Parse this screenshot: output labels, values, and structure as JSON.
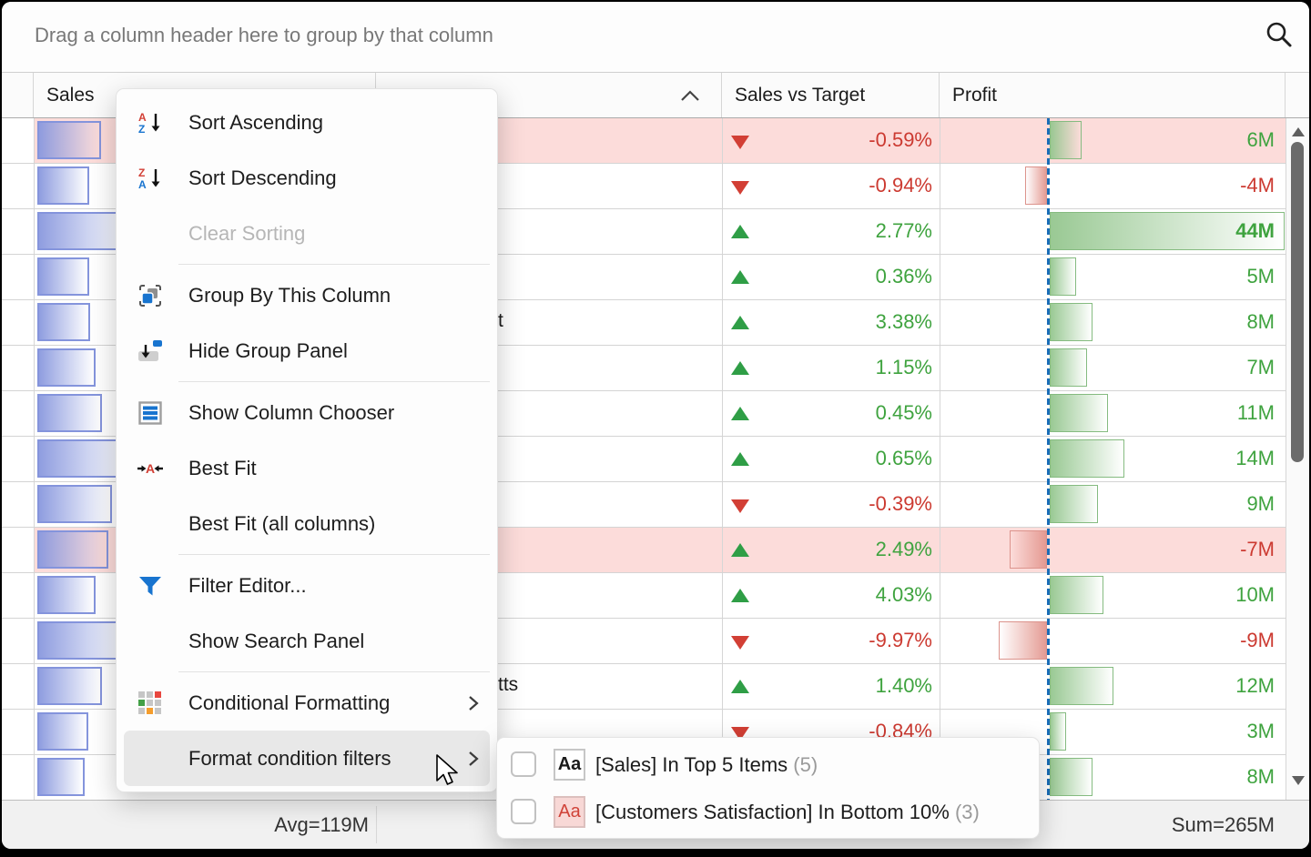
{
  "group_panel": {
    "hint": "Drag a column header here to group by that column",
    "search_icon": "search-icon"
  },
  "columns": [
    {
      "id": "row-indicator",
      "label": ""
    },
    {
      "id": "sales",
      "label": "Sales"
    },
    {
      "id": "hidden-column",
      "label": "",
      "sort": "ascending",
      "sort_icon": "chevron-up-icon"
    },
    {
      "id": "sales-vs-target",
      "label": "Sales vs Target"
    },
    {
      "id": "profit",
      "label": "Profit"
    }
  ],
  "rows": [
    {
      "highlight": true,
      "sales_bar": 70,
      "fragment": "",
      "trend": "down",
      "pct": "-0.59%",
      "pct_color": "red",
      "profit": "6M",
      "profit_color": "green",
      "profit_bar": 35,
      "bar_dir": "pos",
      "bold": false
    },
    {
      "highlight": false,
      "sales_bar": 57,
      "fragment": "",
      "trend": "down",
      "pct": "-0.94%",
      "pct_color": "red",
      "profit": "-4M",
      "profit_color": "red",
      "profit_bar": 24,
      "bar_dir": "neg",
      "bold": false
    },
    {
      "highlight": false,
      "sales_bar": 100,
      "fragment": "",
      "trend": "up",
      "pct": "2.77%",
      "pct_color": "green",
      "profit": "44M",
      "profit_color": "green",
      "profit_bar": 258,
      "bar_dir": "pos",
      "bold": true
    },
    {
      "highlight": false,
      "sales_bar": 57,
      "fragment": "",
      "trend": "up",
      "pct": "0.36%",
      "pct_color": "green",
      "profit": "5M",
      "profit_color": "green",
      "profit_bar": 29,
      "bar_dir": "pos",
      "bold": false
    },
    {
      "highlight": false,
      "sales_bar": 58,
      "fragment": "t",
      "trend": "up",
      "pct": "3.38%",
      "pct_color": "green",
      "profit": "8M",
      "profit_color": "green",
      "profit_bar": 47,
      "bar_dir": "pos",
      "bold": false
    },
    {
      "highlight": false,
      "sales_bar": 64,
      "fragment": "",
      "trend": "up",
      "pct": "1.15%",
      "pct_color": "green",
      "profit": "7M",
      "profit_color": "green",
      "profit_bar": 41,
      "bar_dir": "pos",
      "bold": false
    },
    {
      "highlight": false,
      "sales_bar": 71,
      "fragment": "",
      "trend": "up",
      "pct": "0.45%",
      "pct_color": "green",
      "profit": "11M",
      "profit_color": "green",
      "profit_bar": 64,
      "bar_dir": "pos",
      "bold": false
    },
    {
      "highlight": false,
      "sales_bar": 100,
      "fragment": "",
      "trend": "up",
      "pct": "0.65%",
      "pct_color": "green",
      "profit": "14M",
      "profit_color": "green",
      "profit_bar": 82,
      "bar_dir": "pos",
      "bold": false
    },
    {
      "highlight": false,
      "sales_bar": 82,
      "fragment": "",
      "trend": "down",
      "pct": "-0.39%",
      "pct_color": "red",
      "profit": "9M",
      "profit_color": "green",
      "profit_bar": 53,
      "bar_dir": "pos",
      "bold": false
    },
    {
      "highlight": true,
      "sales_bar": 78,
      "fragment": "",
      "trend": "up",
      "pct": "2.49%",
      "pct_color": "green",
      "profit": "-7M",
      "profit_color": "red",
      "profit_bar": 41,
      "bar_dir": "neg",
      "bold": false
    },
    {
      "highlight": false,
      "sales_bar": 64,
      "fragment": "",
      "trend": "up",
      "pct": "4.03%",
      "pct_color": "green",
      "profit": "10M",
      "profit_color": "green",
      "profit_bar": 59,
      "bar_dir": "pos",
      "bold": false
    },
    {
      "highlight": false,
      "sales_bar": 100,
      "fragment": "",
      "trend": "down",
      "pct": "-9.97%",
      "pct_color": "red",
      "profit": "-9M",
      "profit_color": "red",
      "profit_bar": 53,
      "bar_dir": "neg",
      "bold": false
    },
    {
      "highlight": false,
      "sales_bar": 71,
      "fragment": "tts",
      "trend": "up",
      "pct": "1.40%",
      "pct_color": "green",
      "profit": "12M",
      "profit_color": "green",
      "profit_bar": 70,
      "bar_dir": "pos",
      "bold": false
    },
    {
      "highlight": false,
      "sales_bar": 56,
      "fragment": "",
      "trend": "down",
      "pct": "-0.84%",
      "pct_color": "red",
      "profit": "3M",
      "profit_color": "green",
      "profit_bar": 18,
      "bar_dir": "pos",
      "bold": false
    },
    {
      "highlight": false,
      "sales_bar": 52,
      "fragment": "",
      "trend": null,
      "pct": "",
      "pct_color": "green",
      "profit": "8M",
      "profit_color": "green",
      "profit_bar": 47,
      "bar_dir": "pos",
      "bold": false
    }
  ],
  "footer": {
    "avg": "Avg=119M",
    "sum": "Sum=265M"
  },
  "context_menu": {
    "items": [
      {
        "type": "item",
        "icon": "sort-ascending-icon",
        "label": "Sort Ascending"
      },
      {
        "type": "item",
        "icon": "sort-descending-icon",
        "label": "Sort Descending"
      },
      {
        "type": "item",
        "icon": null,
        "label": "Clear Sorting",
        "disabled": true
      },
      {
        "type": "separator"
      },
      {
        "type": "item",
        "icon": "group-by-icon",
        "label": "Group By This Column"
      },
      {
        "type": "item",
        "icon": "hide-group-panel-icon",
        "label": "Hide Group Panel"
      },
      {
        "type": "separator"
      },
      {
        "type": "item",
        "icon": "column-chooser-icon",
        "label": "Show Column Chooser"
      },
      {
        "type": "item",
        "icon": "best-fit-icon",
        "label": "Best Fit"
      },
      {
        "type": "item",
        "icon": null,
        "label": "Best Fit (all columns)"
      },
      {
        "type": "separator"
      },
      {
        "type": "item",
        "icon": "filter-icon",
        "label": "Filter Editor..."
      },
      {
        "type": "item",
        "icon": null,
        "label": "Show Search Panel"
      },
      {
        "type": "separator"
      },
      {
        "type": "item",
        "icon": "conditional-formatting-icon",
        "label": "Conditional Formatting",
        "has_submenu": true
      },
      {
        "type": "item",
        "icon": null,
        "label": "Format condition filters",
        "has_submenu": true,
        "highlighted": true
      }
    ]
  },
  "submenu": {
    "items": [
      {
        "checked": false,
        "badge": "Aa",
        "badge_style": "normal",
        "label": "[Sales] In Top 5 Items",
        "count": "(5)"
      },
      {
        "checked": false,
        "badge": "Aa",
        "badge_style": "danger",
        "label": "[Customers Satisfaction] In Bottom 10%",
        "count": "(3)"
      }
    ]
  },
  "colors": {
    "accent_blue": "#1874cf",
    "positive_green": "#3fa33f",
    "negative_red": "#cc3a31",
    "row_highlight_pink": "#fcdcda",
    "sales_bar_blue": "#8a99dd",
    "profit_bar_green": "#94c68e",
    "profit_bar_red": "#e3968e",
    "zero_axis_blue": "#1a6db8"
  }
}
